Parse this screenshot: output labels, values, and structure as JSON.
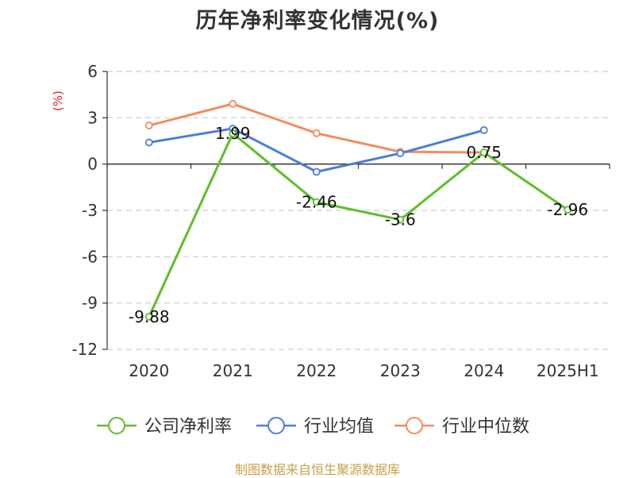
{
  "chart_data": {
    "type": "line",
    "title": "历年净利率变化情况(%)",
    "ylabel": "(%)",
    "xlabel": "",
    "categories": [
      "2020",
      "2021",
      "2022",
      "2023",
      "2024",
      "2025H1"
    ],
    "yticks": [
      "6",
      "3",
      "0",
      "-3",
      "-6",
      "-9",
      "-12"
    ],
    "ylim": [
      -12,
      6
    ],
    "grid": true,
    "legend_position": "bottom",
    "series": [
      {
        "name": "公司净利率",
        "color": "#5cbf2a",
        "values": [
          -9.88,
          1.99,
          -2.46,
          -3.6,
          0.75,
          -2.96
        ],
        "labels": [
          "-9.88",
          "1.99",
          "-2.46",
          "-3.6",
          "0.75",
          "-2.96"
        ]
      },
      {
        "name": "行业均值",
        "color": "#4a7fd8",
        "values": [
          1.4,
          2.3,
          -0.5,
          0.7,
          2.2,
          null
        ]
      },
      {
        "name": "行业中位数",
        "color": "#f48c5a",
        "values": [
          2.5,
          3.9,
          2.0,
          0.8,
          0.75,
          null
        ]
      }
    ]
  },
  "source": "制图数据来自恒生聚源数据库"
}
